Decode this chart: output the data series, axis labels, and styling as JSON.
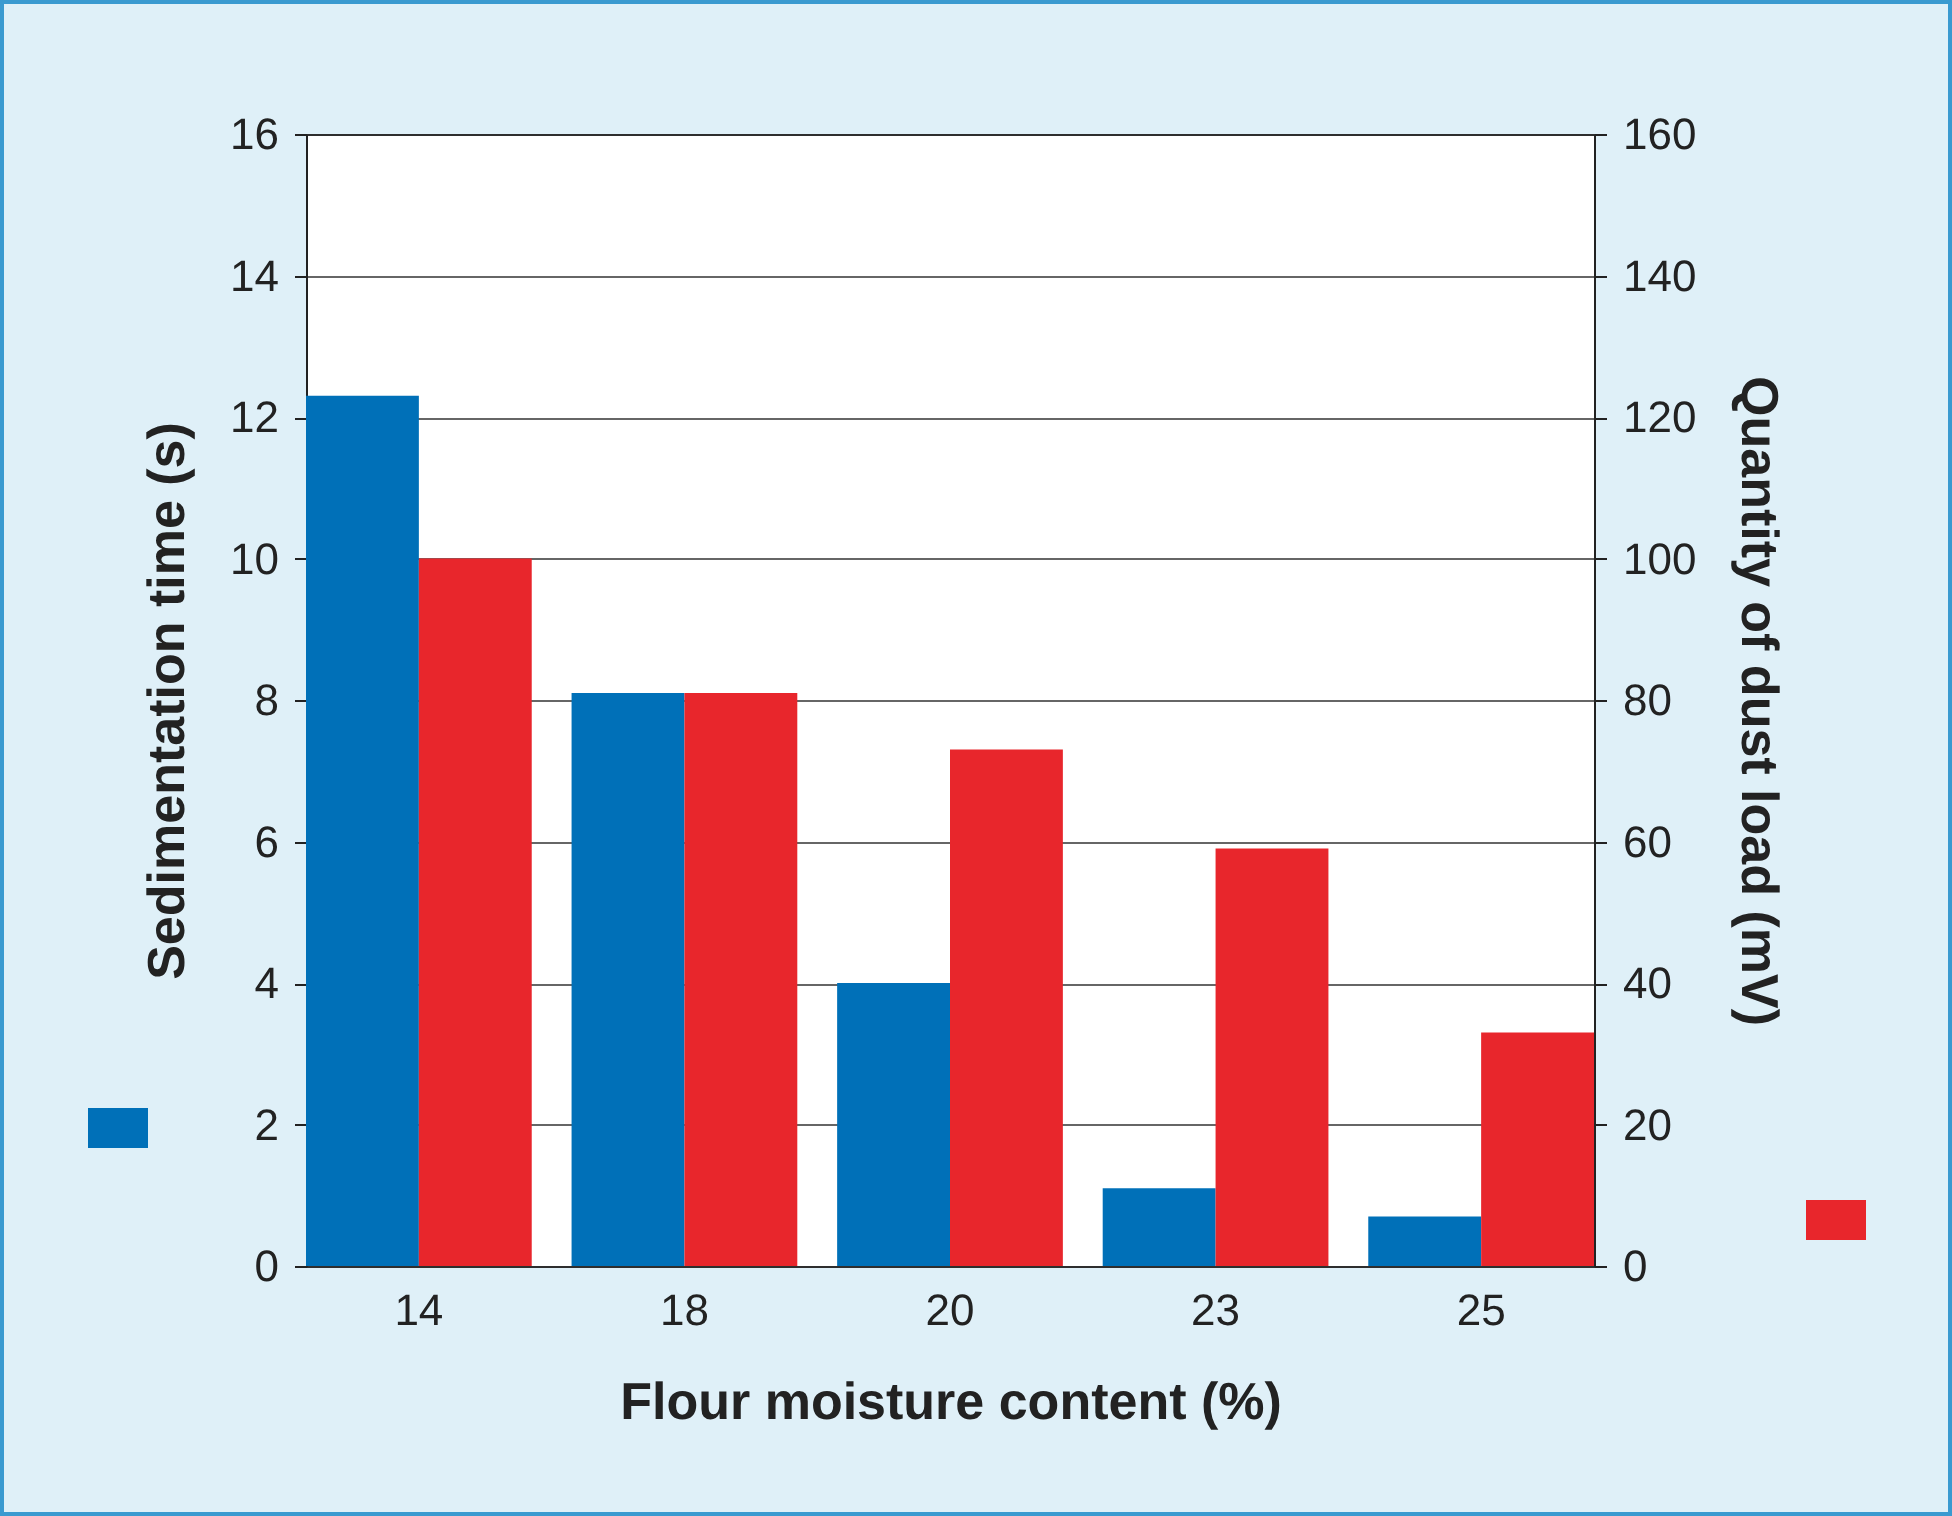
{
  "chart_data": {
    "type": "bar",
    "categories": [
      "14",
      "18",
      "20",
      "23",
      "25"
    ],
    "xlabel": "Flour moisture content (%)",
    "ylabel": "Sedimentation time (s)",
    "y2label": "Quantity of dust load (mV)",
    "series": [
      {
        "color": "#0070b8",
        "values": [
          12.3,
          8.1,
          4.0,
          1.1,
          0.7
        ]
      },
      {
        "color": "#e8262c",
        "axis": "y2",
        "values": [
          100,
          81,
          73,
          59,
          33
        ]
      }
    ],
    "ylim": [
      0,
      16
    ],
    "yticks": [
      0,
      2,
      4,
      6,
      8,
      10,
      12,
      14,
      16
    ],
    "y2lim": [
      0,
      160
    ],
    "y2ticks": [
      0,
      20,
      40,
      60,
      80,
      100,
      120,
      140,
      160
    ],
    "grid": "y"
  }
}
